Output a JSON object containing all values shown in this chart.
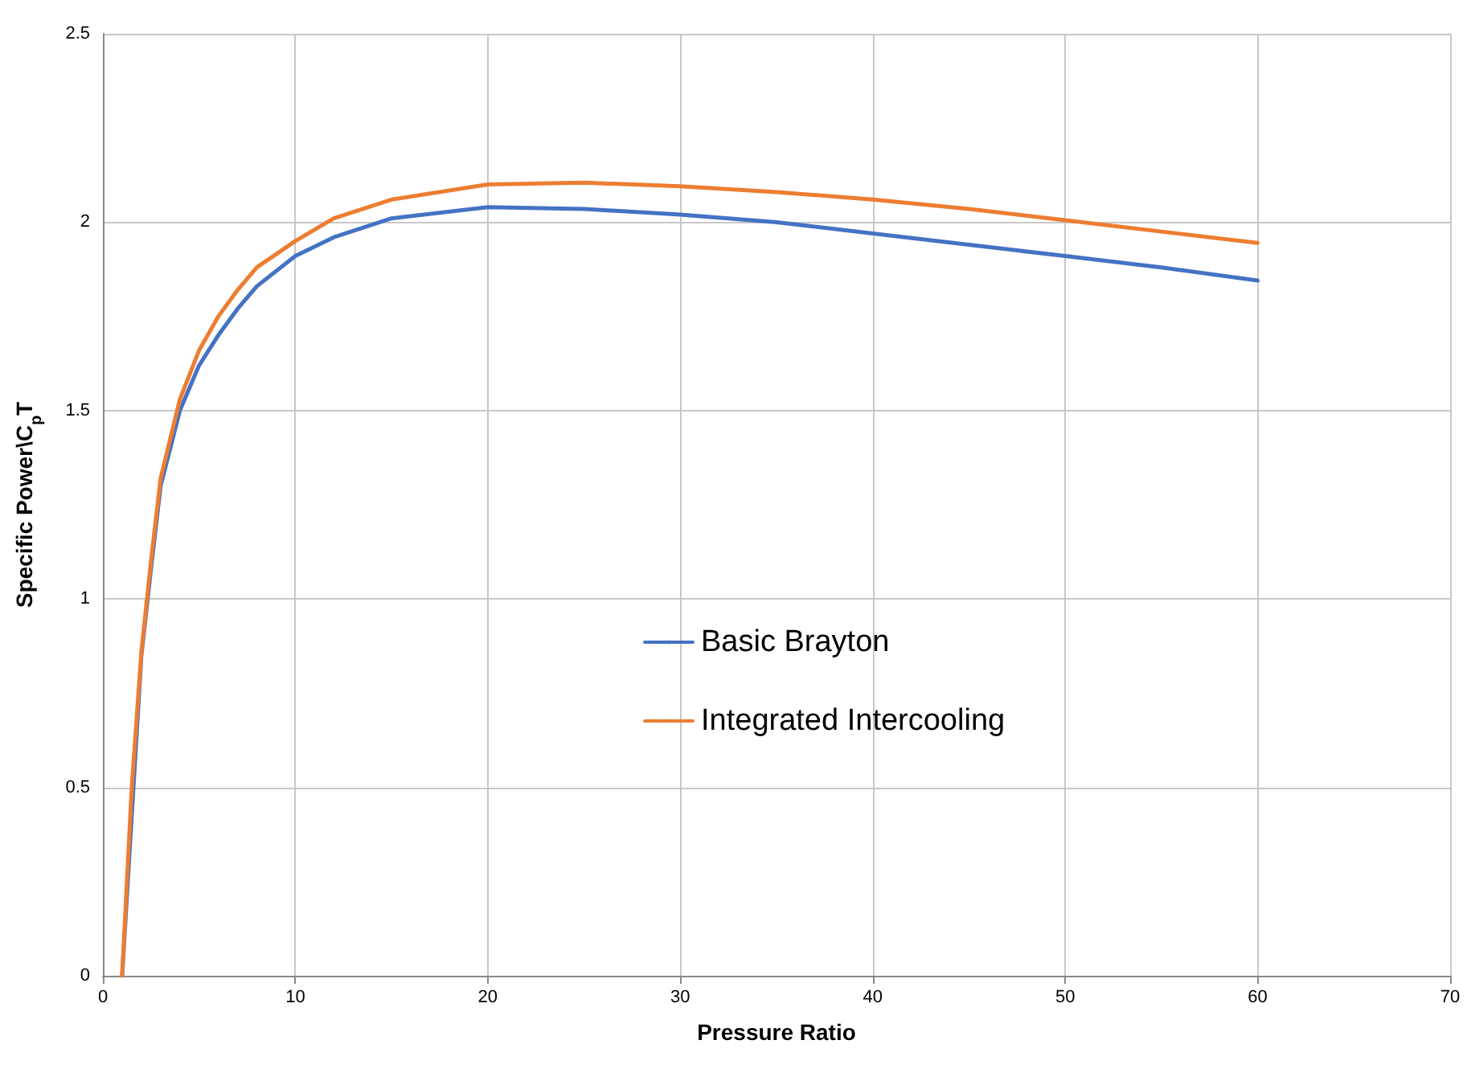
{
  "chart_data": {
    "type": "line",
    "xlabel": "Pressure Ratio",
    "ylabel": "Specific Power\\C$_{p}$T",
    "xlim": [
      0,
      70
    ],
    "xticks": [
      0,
      10,
      20,
      30,
      40,
      50,
      60,
      70
    ],
    "ylim": [
      0,
      2.5
    ],
    "yticks": [
      0,
      0.5,
      1,
      1.5,
      2,
      2.5
    ],
    "grid": true,
    "legend": "center",
    "marker": "none",
    "line_style": "solid",
    "series": [
      {
        "name": "Basic Brayton",
        "color": "#4472c4",
        "x": [
          1,
          2,
          2.5,
          3,
          4,
          5,
          6,
          7,
          8,
          10,
          12,
          15,
          20,
          25,
          30,
          35,
          40,
          45,
          50,
          55,
          60
        ],
        "values": [
          0,
          0.85,
          1.08,
          1.3,
          1.5,
          1.62,
          1.7,
          1.77,
          1.83,
          1.91,
          1.96,
          2.01,
          2.04,
          2.035,
          2.02,
          2.0,
          1.97,
          1.94,
          1.91,
          1.88,
          1.845
        ]
      },
      {
        "name": "Integrated Intercooling",
        "color": "#ed7d31",
        "x": [
          1,
          1.5,
          2,
          2.5,
          3,
          4,
          5,
          6,
          7,
          8,
          10,
          12,
          15,
          20,
          25,
          30,
          35,
          40,
          45,
          50,
          55,
          60
        ],
        "values": [
          0,
          0.5,
          0.86,
          1.1,
          1.32,
          1.53,
          1.66,
          1.75,
          1.82,
          1.88,
          1.95,
          2.01,
          2.06,
          2.1,
          2.105,
          2.095,
          2.08,
          2.06,
          2.035,
          2.005,
          1.975,
          1.945
        ]
      }
    ]
  }
}
